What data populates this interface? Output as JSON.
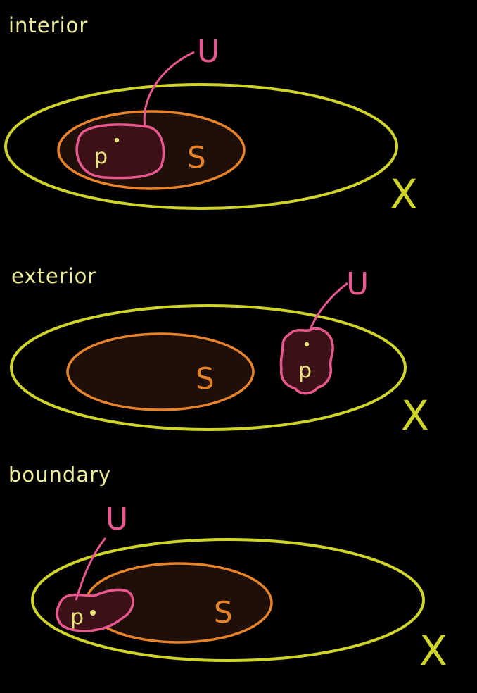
{
  "colors": {
    "background": "#000000",
    "space_X": "#cfd429",
    "set_S": "#e8832a",
    "set_S_fill": "#1e0f09",
    "neighborhood_U": "#e8578e",
    "neighborhood_U_fill": "#3b1016",
    "point_p": "#e6e27a",
    "title_text": "#eeee9c"
  },
  "panels": [
    {
      "title": "interior",
      "space_label": "X",
      "set_label": "S",
      "neighborhood_label": "U",
      "point_label": "p"
    },
    {
      "title": "exterior",
      "space_label": "X",
      "set_label": "S",
      "neighborhood_label": "U",
      "point_label": "p"
    },
    {
      "title": "boundary",
      "space_label": "X",
      "set_label": "S",
      "neighborhood_label": "U",
      "point_label": "p"
    }
  ]
}
